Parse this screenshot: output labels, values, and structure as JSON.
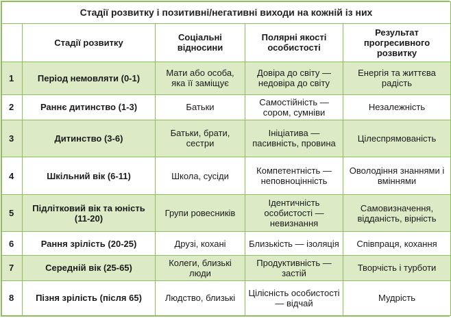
{
  "title": "Стадії розвитку і позитивні/негативні виходи на кожній із них",
  "headers": [
    "",
    "Стадії розвитку",
    "Соціальні відносини",
    "Полярні якості особистості",
    "Результат прогресивного розвитку"
  ],
  "rows": [
    {
      "num": "1",
      "stage": "Період немовляти (0-1)",
      "social": "Мати або особа, яка її заміщує",
      "qualities": "Довіра до світу — недовіра до світу",
      "result": "Енергія та життєва радість"
    },
    {
      "num": "2",
      "stage": "Раннє дитинство (1-3)",
      "social": "Батьки",
      "qualities": "Самостійність — сором, сумніви",
      "result": "Незалежність"
    },
    {
      "num": "3",
      "stage": "Дитинство (3-6)",
      "social": "Батьки, брати, сестри",
      "qualities": "Ініціатива — пасивність, провина",
      "result": "Цілеспрямованість"
    },
    {
      "num": "4",
      "stage": "Шкільний вік (6-11)",
      "social": "Школа, сусіди",
      "qualities": "Компетентність — неповноцінність",
      "result": "Оволодіння знаннями і вміннями"
    },
    {
      "num": "5",
      "stage": "Підлітковий вік та юність (11-20)",
      "social": "Групи ровесників",
      "qualities": "Ідентичність особистості — невизнання",
      "result": "Самовизначення, відданість, вірність"
    },
    {
      "num": "6",
      "stage": "Рання зрілість (20-25)",
      "social": "Друзі, кохані",
      "qualities": "Близькість — ізоляція",
      "result": "Співпраця, кохання"
    },
    {
      "num": "7",
      "stage": "Середній вік (25-65)",
      "social": "Колеги, близькі люди",
      "qualities": "Продуктивність — застій",
      "result": "Творчість і турботи"
    },
    {
      "num": "8",
      "stage": "Пізня зрілість (після 65)",
      "social": "Людство, близькі",
      "qualities": "Цілісність особистості — відчай",
      "result": "Мудрість"
    }
  ]
}
